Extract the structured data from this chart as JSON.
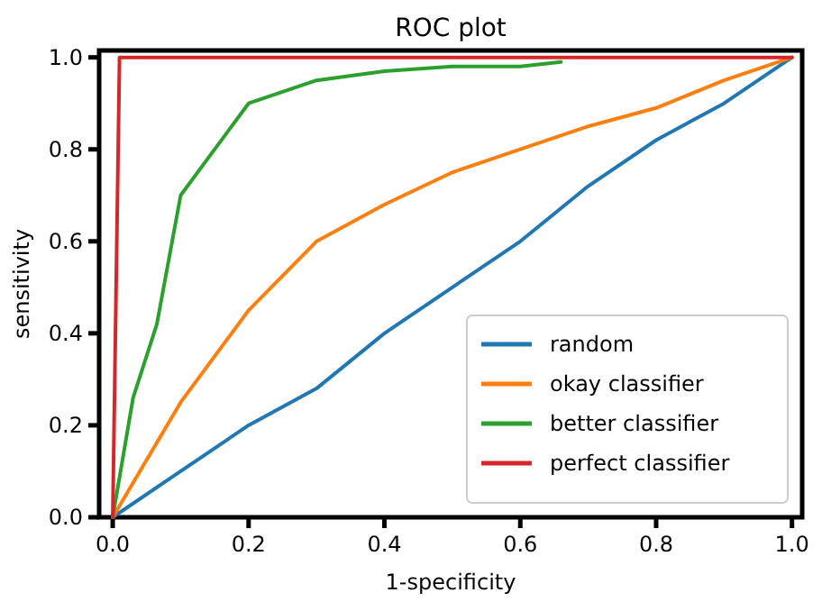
{
  "chart_data": {
    "type": "line",
    "title": "ROC plot",
    "xlabel": "1-specificity",
    "ylabel": "sensitivity",
    "xlim": [
      -0.02,
      1.015
    ],
    "ylim": [
      0,
      1.015
    ],
    "xticks": [
      {
        "value": 0,
        "label": "0.0"
      },
      {
        "value": 0.2,
        "label": "0.2"
      },
      {
        "value": 0.4,
        "label": "0.4"
      },
      {
        "value": 0.6,
        "label": "0.6"
      },
      {
        "value": 0.8,
        "label": "0.8"
      },
      {
        "value": 1,
        "label": "1.0"
      }
    ],
    "yticks": [
      {
        "value": 0,
        "label": "0.0"
      },
      {
        "value": 0.2,
        "label": "0.2"
      },
      {
        "value": 0.4,
        "label": "0.4"
      },
      {
        "value": 0.6,
        "label": "0.6"
      },
      {
        "value": 0.8,
        "label": "0.8"
      },
      {
        "value": 1,
        "label": "1.0"
      }
    ],
    "series": [
      {
        "name": "random",
        "color": "#1f77b4",
        "x": [
          0,
          0.1,
          0.2,
          0.3,
          0.4,
          0.5,
          0.6,
          0.7,
          0.8,
          0.9,
          1
        ],
        "values": [
          0,
          0.1,
          0.2,
          0.28,
          0.4,
          0.5,
          0.6,
          0.72,
          0.82,
          0.9,
          1
        ]
      },
      {
        "name": "okay classifier",
        "color": "#ff7f0e",
        "x": [
          0,
          0.1,
          0.2,
          0.3,
          0.4,
          0.5,
          0.6,
          0.7,
          0.8,
          0.9,
          1
        ],
        "values": [
          0,
          0.25,
          0.45,
          0.6,
          0.68,
          0.75,
          0.8,
          0.85,
          0.89,
          0.95,
          1
        ]
      },
      {
        "name": "better classifier",
        "color": "#2ca02c",
        "x": [
          0,
          0.03,
          0.065,
          0.1,
          0.2,
          0.3,
          0.4,
          0.5,
          0.6,
          0.66
        ],
        "values": [
          0,
          0.26,
          0.42,
          0.7,
          0.9,
          0.95,
          0.97,
          0.98,
          0.98,
          0.99
        ]
      },
      {
        "name": "perfect classifier",
        "color": "#d62728",
        "x": [
          0,
          0.01,
          1
        ],
        "values": [
          0,
          1,
          1
        ]
      }
    ],
    "legend": "bottom right",
    "grid": false,
    "line_style": "solid",
    "marker": "none"
  }
}
